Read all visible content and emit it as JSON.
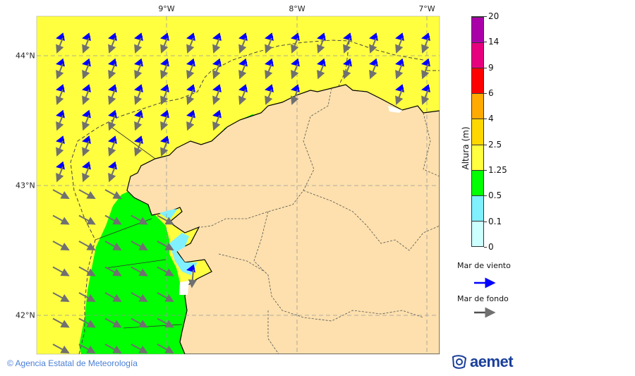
{
  "map": {
    "lon_labels": [
      "9°W",
      "8°W",
      "7°W"
    ],
    "lat_labels": [
      "44°N",
      "43°N",
      "42°N"
    ],
    "colors": {
      "sea_yellow": "#ffff40",
      "sea_green": "#00ff00",
      "sea_cyan": "#80f0ff",
      "land": "#fde0ad",
      "wind_arrow": "#0000ff",
      "swell_arrow": "#707070"
    }
  },
  "colorbar": {
    "title": "Altura (m)",
    "ticks": [
      "0",
      "0.1",
      "0.5",
      "1.25",
      "2.5",
      "4",
      "6",
      "9",
      "14",
      "20"
    ],
    "colors": [
      "#ccffff",
      "#80f0ff",
      "#00ff00",
      "#ffff40",
      "#ffd700",
      "#ffaa00",
      "#ff0000",
      "#e6007e",
      "#aa00aa"
    ]
  },
  "legend": {
    "wind_sea": "Mar de viento",
    "swell": "Mar de fondo"
  },
  "footer": {
    "text": "Agencia Estatal de Meteorología"
  },
  "logo": {
    "text": "aemet"
  }
}
